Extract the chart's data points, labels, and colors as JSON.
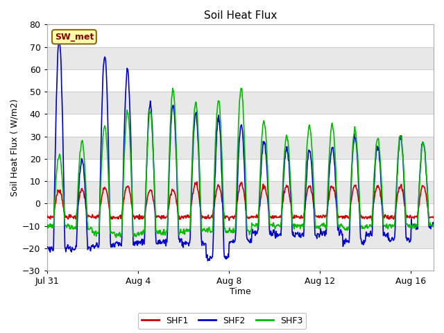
{
  "title": "Soil Heat Flux",
  "xlabel": "Time",
  "ylabel": "Soil Heat Flux (W/m2)",
  "ylim": [
    -30,
    80
  ],
  "yticks": [
    -30,
    -20,
    -10,
    0,
    10,
    20,
    30,
    40,
    50,
    60,
    70,
    80
  ],
  "xtick_labels": [
    "Jul 31",
    "Aug 4",
    "Aug 8",
    "Aug 12",
    "Aug 16"
  ],
  "xtick_positions": [
    0,
    4,
    8,
    12,
    16
  ],
  "xlim": [
    0,
    17
  ],
  "colors": {
    "SHF1": "#cc0000",
    "SHF2": "#0000cc",
    "SHF3": "#00bb00"
  },
  "legend_label": "SW_met",
  "plot_bg_light": "#f0f0f0",
  "plot_bg_dark": "#d8d8d8",
  "band_colors": [
    "#ffffff",
    "#e8e8e8"
  ],
  "line_width": 1.2,
  "figsize": [
    6.4,
    4.8
  ],
  "dpi": 100,
  "peaks_shf1": [
    6,
    6,
    7,
    8,
    6,
    6,
    9,
    8,
    9,
    8,
    8,
    8,
    8,
    8,
    8,
    8,
    8
  ],
  "peaks_shf2": [
    73,
    20,
    66,
    59,
    44,
    45,
    40,
    38,
    35,
    28,
    25,
    24,
    25,
    30,
    26,
    30,
    27
  ],
  "peaks_shf3": [
    22,
    28,
    35,
    41,
    41,
    51,
    45,
    46,
    52,
    37,
    30,
    35,
    35,
    33,
    29,
    30,
    27
  ],
  "nights_shf1": [
    -6,
    -6,
    -6,
    -6,
    -6,
    -6,
    -6,
    -6,
    -6,
    -6,
    -6,
    -6,
    -6,
    -6,
    -6,
    -6,
    -6
  ],
  "nights_shf2": [
    -20,
    -20,
    -19,
    -18,
    -17,
    -17,
    -18,
    -24,
    -17,
    -13,
    -14,
    -14,
    -13,
    -17,
    -14,
    -16,
    -10
  ],
  "nights_shf3": [
    -10,
    -11,
    -13,
    -14,
    -13,
    -13,
    -12,
    -12,
    -12,
    -10,
    -10,
    -10,
    -10,
    -11,
    -10,
    -10,
    -10
  ]
}
